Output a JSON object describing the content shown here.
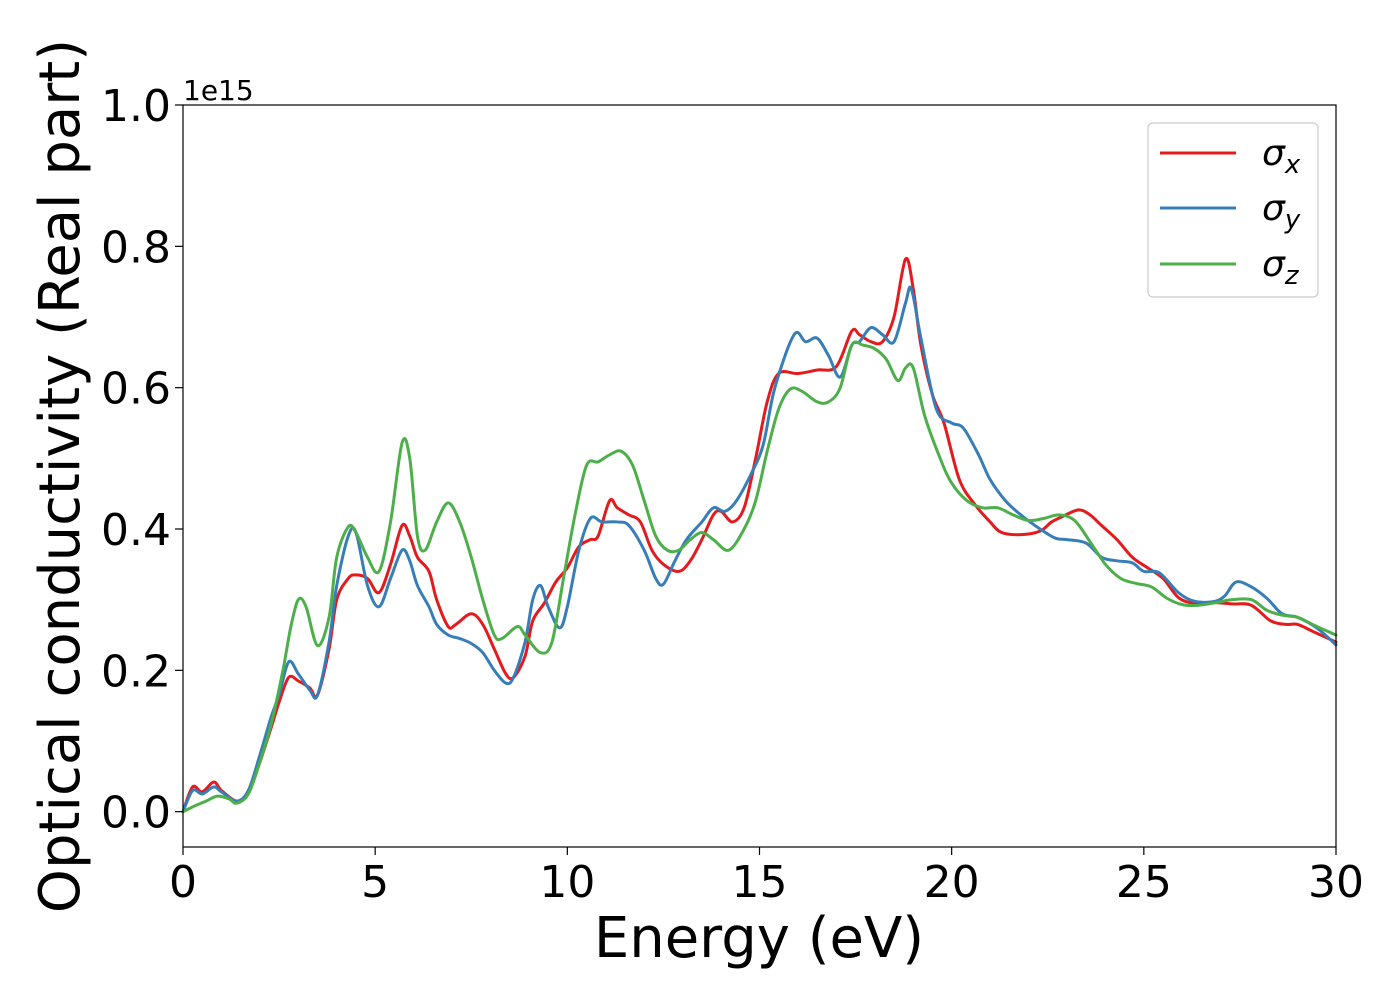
{
  "chart_data": {
    "type": "line",
    "xlabel": "Energy (eV)",
    "ylabel": "Optical conductivity (Real part)",
    "y_offset_label": "1e15",
    "xlim": [
      0,
      30
    ],
    "ylim": [
      -0.05,
      1.0
    ],
    "xticks": [
      0,
      5,
      10,
      15,
      20,
      25,
      30
    ],
    "xtick_labels": [
      "0",
      "5",
      "10",
      "15",
      "20",
      "25",
      "30"
    ],
    "yticks": [
      0.0,
      0.2,
      0.4,
      0.6,
      0.8,
      1.0
    ],
    "ytick_labels": [
      "0.0",
      "0.2",
      "0.4",
      "0.6",
      "0.8",
      "1.0"
    ],
    "grid": false,
    "legend_position": "top-right",
    "series": [
      {
        "name": "σx",
        "legend_base": "σ",
        "legend_sub": "x",
        "color": "#e41a1c",
        "points": [
          [
            0.0,
            0.0
          ],
          [
            0.25,
            0.035
          ],
          [
            0.5,
            0.028
          ],
          [
            0.8,
            0.042
          ],
          [
            1.0,
            0.03
          ],
          [
            1.4,
            0.015
          ],
          [
            1.7,
            0.028
          ],
          [
            2.0,
            0.07
          ],
          [
            2.3,
            0.12
          ],
          [
            2.5,
            0.155
          ],
          [
            2.75,
            0.19
          ],
          [
            3.0,
            0.185
          ],
          [
            3.3,
            0.175
          ],
          [
            3.5,
            0.165
          ],
          [
            3.8,
            0.23
          ],
          [
            4.0,
            0.3
          ],
          [
            4.3,
            0.33
          ],
          [
            4.5,
            0.335
          ],
          [
            4.8,
            0.33
          ],
          [
            5.1,
            0.31
          ],
          [
            5.4,
            0.35
          ],
          [
            5.7,
            0.405
          ],
          [
            5.9,
            0.39
          ],
          [
            6.1,
            0.36
          ],
          [
            6.4,
            0.34
          ],
          [
            6.6,
            0.3
          ],
          [
            6.9,
            0.262
          ],
          [
            7.1,
            0.265
          ],
          [
            7.5,
            0.28
          ],
          [
            7.8,
            0.265
          ],
          [
            8.1,
            0.23
          ],
          [
            8.4,
            0.195
          ],
          [
            8.6,
            0.19
          ],
          [
            8.9,
            0.22
          ],
          [
            9.1,
            0.27
          ],
          [
            9.4,
            0.295
          ],
          [
            9.7,
            0.325
          ],
          [
            10.0,
            0.345
          ],
          [
            10.3,
            0.375
          ],
          [
            10.6,
            0.385
          ],
          [
            10.8,
            0.39
          ],
          [
            11.1,
            0.44
          ],
          [
            11.3,
            0.43
          ],
          [
            11.6,
            0.42
          ],
          [
            11.9,
            0.41
          ],
          [
            12.2,
            0.37
          ],
          [
            12.5,
            0.35
          ],
          [
            12.9,
            0.34
          ],
          [
            13.2,
            0.355
          ],
          [
            13.5,
            0.385
          ],
          [
            13.8,
            0.42
          ],
          [
            14.0,
            0.425
          ],
          [
            14.3,
            0.41
          ],
          [
            14.6,
            0.43
          ],
          [
            14.9,
            0.5
          ],
          [
            15.2,
            0.58
          ],
          [
            15.5,
            0.62
          ],
          [
            16.0,
            0.62
          ],
          [
            16.5,
            0.625
          ],
          [
            17.0,
            0.63
          ],
          [
            17.4,
            0.68
          ],
          [
            17.6,
            0.675
          ],
          [
            17.9,
            0.665
          ],
          [
            18.2,
            0.665
          ],
          [
            18.5,
            0.7
          ],
          [
            18.8,
            0.782
          ],
          [
            19.0,
            0.74
          ],
          [
            19.2,
            0.66
          ],
          [
            19.5,
            0.59
          ],
          [
            19.8,
            0.55
          ],
          [
            20.2,
            0.47
          ],
          [
            20.6,
            0.435
          ],
          [
            21.0,
            0.41
          ],
          [
            21.3,
            0.395
          ],
          [
            21.8,
            0.392
          ],
          [
            22.3,
            0.397
          ],
          [
            22.6,
            0.41
          ],
          [
            22.9,
            0.418
          ],
          [
            23.3,
            0.427
          ],
          [
            23.6,
            0.42
          ],
          [
            23.9,
            0.405
          ],
          [
            24.3,
            0.385
          ],
          [
            24.7,
            0.36
          ],
          [
            25.1,
            0.345
          ],
          [
            25.5,
            0.33
          ],
          [
            25.9,
            0.303
          ],
          [
            26.3,
            0.295
          ],
          [
            26.8,
            0.296
          ],
          [
            27.3,
            0.294
          ],
          [
            27.8,
            0.292
          ],
          [
            28.3,
            0.27
          ],
          [
            28.7,
            0.265
          ],
          [
            29.0,
            0.265
          ],
          [
            29.4,
            0.255
          ],
          [
            30.0,
            0.24
          ]
        ]
      },
      {
        "name": "σy",
        "legend_base": "σ",
        "legend_sub": "y",
        "color": "#377eb8",
        "points": [
          [
            0.0,
            0.0
          ],
          [
            0.25,
            0.03
          ],
          [
            0.5,
            0.025
          ],
          [
            0.8,
            0.035
          ],
          [
            1.0,
            0.028
          ],
          [
            1.4,
            0.015
          ],
          [
            1.7,
            0.03
          ],
          [
            2.0,
            0.08
          ],
          [
            2.3,
            0.135
          ],
          [
            2.5,
            0.165
          ],
          [
            2.75,
            0.212
          ],
          [
            3.0,
            0.195
          ],
          [
            3.3,
            0.172
          ],
          [
            3.5,
            0.165
          ],
          [
            3.8,
            0.24
          ],
          [
            4.0,
            0.32
          ],
          [
            4.3,
            0.39
          ],
          [
            4.5,
            0.395
          ],
          [
            4.8,
            0.32
          ],
          [
            5.1,
            0.29
          ],
          [
            5.4,
            0.33
          ],
          [
            5.7,
            0.37
          ],
          [
            5.9,
            0.355
          ],
          [
            6.1,
            0.32
          ],
          [
            6.4,
            0.29
          ],
          [
            6.6,
            0.265
          ],
          [
            6.9,
            0.25
          ],
          [
            7.2,
            0.245
          ],
          [
            7.5,
            0.238
          ],
          [
            7.8,
            0.225
          ],
          [
            8.1,
            0.2
          ],
          [
            8.4,
            0.182
          ],
          [
            8.6,
            0.19
          ],
          [
            8.9,
            0.24
          ],
          [
            9.1,
            0.3
          ],
          [
            9.3,
            0.32
          ],
          [
            9.5,
            0.29
          ],
          [
            9.8,
            0.26
          ],
          [
            10.0,
            0.29
          ],
          [
            10.3,
            0.37
          ],
          [
            10.6,
            0.415
          ],
          [
            10.9,
            0.41
          ],
          [
            11.3,
            0.41
          ],
          [
            11.6,
            0.405
          ],
          [
            12.0,
            0.37
          ],
          [
            12.3,
            0.33
          ],
          [
            12.5,
            0.322
          ],
          [
            12.8,
            0.355
          ],
          [
            13.1,
            0.385
          ],
          [
            13.5,
            0.41
          ],
          [
            13.8,
            0.43
          ],
          [
            14.1,
            0.425
          ],
          [
            14.4,
            0.44
          ],
          [
            14.8,
            0.48
          ],
          [
            15.1,
            0.52
          ],
          [
            15.4,
            0.6
          ],
          [
            15.9,
            0.675
          ],
          [
            16.2,
            0.665
          ],
          [
            16.5,
            0.67
          ],
          [
            16.8,
            0.645
          ],
          [
            17.1,
            0.615
          ],
          [
            17.4,
            0.66
          ],
          [
            17.6,
            0.665
          ],
          [
            17.9,
            0.685
          ],
          [
            18.2,
            0.675
          ],
          [
            18.5,
            0.665
          ],
          [
            18.8,
            0.72
          ],
          [
            18.95,
            0.74
          ],
          [
            19.2,
            0.67
          ],
          [
            19.6,
            0.57
          ],
          [
            20.0,
            0.55
          ],
          [
            20.3,
            0.543
          ],
          [
            20.7,
            0.505
          ],
          [
            21.0,
            0.47
          ],
          [
            21.4,
            0.44
          ],
          [
            21.8,
            0.42
          ],
          [
            22.3,
            0.4
          ],
          [
            22.7,
            0.387
          ],
          [
            23.0,
            0.385
          ],
          [
            23.5,
            0.38
          ],
          [
            23.9,
            0.36
          ],
          [
            24.3,
            0.355
          ],
          [
            24.7,
            0.352
          ],
          [
            25.0,
            0.34
          ],
          [
            25.4,
            0.338
          ],
          [
            25.9,
            0.31
          ],
          [
            26.3,
            0.298
          ],
          [
            26.8,
            0.297
          ],
          [
            27.1,
            0.305
          ],
          [
            27.4,
            0.325
          ],
          [
            27.8,
            0.318
          ],
          [
            28.2,
            0.302
          ],
          [
            28.6,
            0.28
          ],
          [
            29.0,
            0.275
          ],
          [
            29.5,
            0.26
          ],
          [
            30.0,
            0.236
          ]
        ]
      },
      {
        "name": "σz",
        "legend_base": "σ",
        "legend_sub": "z",
        "color": "#4daf4a",
        "points": [
          [
            0.0,
            0.0
          ],
          [
            0.3,
            0.008
          ],
          [
            0.6,
            0.015
          ],
          [
            0.9,
            0.022
          ],
          [
            1.2,
            0.018
          ],
          [
            1.4,
            0.012
          ],
          [
            1.7,
            0.025
          ],
          [
            2.0,
            0.07
          ],
          [
            2.3,
            0.125
          ],
          [
            2.6,
            0.2
          ],
          [
            2.8,
            0.26
          ],
          [
            3.0,
            0.3
          ],
          [
            3.2,
            0.29
          ],
          [
            3.5,
            0.235
          ],
          [
            3.8,
            0.275
          ],
          [
            4.0,
            0.36
          ],
          [
            4.3,
            0.403
          ],
          [
            4.5,
            0.395
          ],
          [
            4.8,
            0.36
          ],
          [
            5.1,
            0.34
          ],
          [
            5.4,
            0.41
          ],
          [
            5.7,
            0.522
          ],
          [
            5.9,
            0.5
          ],
          [
            6.1,
            0.39
          ],
          [
            6.3,
            0.37
          ],
          [
            6.6,
            0.41
          ],
          [
            6.9,
            0.437
          ],
          [
            7.2,
            0.41
          ],
          [
            7.5,
            0.36
          ],
          [
            7.8,
            0.3
          ],
          [
            8.1,
            0.25
          ],
          [
            8.3,
            0.245
          ],
          [
            8.7,
            0.262
          ],
          [
            8.9,
            0.25
          ],
          [
            9.3,
            0.225
          ],
          [
            9.6,
            0.24
          ],
          [
            9.9,
            0.33
          ],
          [
            10.2,
            0.42
          ],
          [
            10.5,
            0.49
          ],
          [
            10.8,
            0.495
          ],
          [
            11.1,
            0.505
          ],
          [
            11.4,
            0.51
          ],
          [
            11.7,
            0.49
          ],
          [
            12.0,
            0.44
          ],
          [
            12.3,
            0.39
          ],
          [
            12.6,
            0.37
          ],
          [
            12.9,
            0.37
          ],
          [
            13.2,
            0.385
          ],
          [
            13.5,
            0.395
          ],
          [
            13.8,
            0.385
          ],
          [
            14.2,
            0.37
          ],
          [
            14.6,
            0.4
          ],
          [
            14.9,
            0.44
          ],
          [
            15.2,
            0.51
          ],
          [
            15.5,
            0.57
          ],
          [
            15.8,
            0.598
          ],
          [
            16.1,
            0.595
          ],
          [
            16.5,
            0.58
          ],
          [
            16.8,
            0.58
          ],
          [
            17.1,
            0.6
          ],
          [
            17.4,
            0.66
          ],
          [
            17.7,
            0.66
          ],
          [
            18.0,
            0.655
          ],
          [
            18.3,
            0.64
          ],
          [
            18.6,
            0.61
          ],
          [
            18.8,
            0.628
          ],
          [
            19.0,
            0.628
          ],
          [
            19.3,
            0.56
          ],
          [
            19.7,
            0.5
          ],
          [
            20.0,
            0.465
          ],
          [
            20.4,
            0.44
          ],
          [
            20.8,
            0.43
          ],
          [
            21.2,
            0.43
          ],
          [
            21.6,
            0.42
          ],
          [
            22.0,
            0.412
          ],
          [
            22.4,
            0.415
          ],
          [
            22.8,
            0.42
          ],
          [
            23.2,
            0.412
          ],
          [
            23.6,
            0.382
          ],
          [
            24.0,
            0.35
          ],
          [
            24.4,
            0.33
          ],
          [
            24.8,
            0.323
          ],
          [
            25.2,
            0.318
          ],
          [
            25.6,
            0.302
          ],
          [
            26.0,
            0.293
          ],
          [
            26.4,
            0.292
          ],
          [
            26.9,
            0.296
          ],
          [
            27.3,
            0.3
          ],
          [
            27.8,
            0.3
          ],
          [
            28.2,
            0.285
          ],
          [
            28.6,
            0.278
          ],
          [
            29.0,
            0.275
          ],
          [
            29.5,
            0.262
          ],
          [
            30.0,
            0.25
          ]
        ]
      }
    ]
  }
}
